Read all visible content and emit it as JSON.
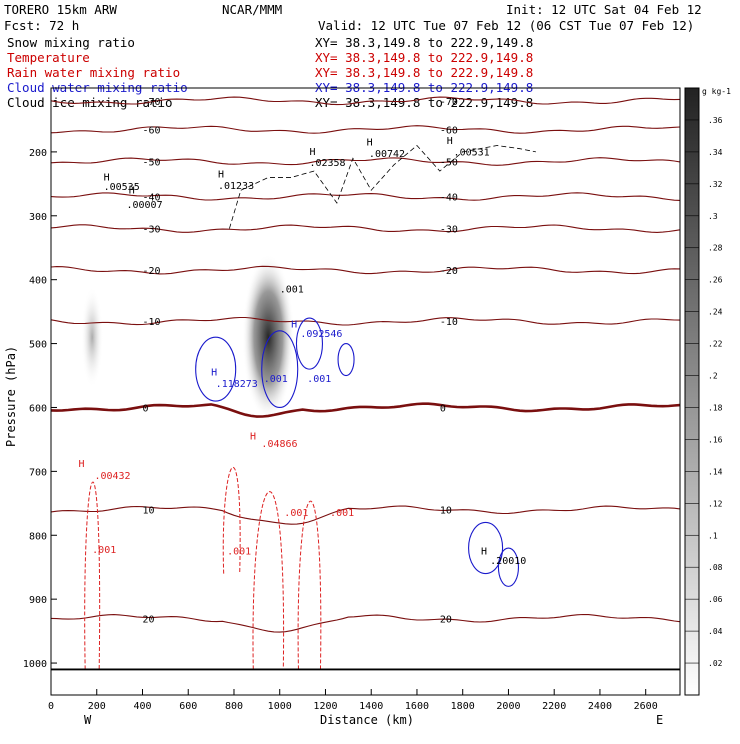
{
  "header": {
    "left_line1": "TORERO  15km ARW",
    "center": "NCAR/MMM",
    "init": "Init: 12 UTC Sat 04 Feb 12",
    "left_line2": "Fcst:   72 h",
    "valid": "Valid: 12 UTC Tue 07 Feb 12 (06 CST Tue 07 Feb 12)"
  },
  "fields": [
    {
      "name": "Snow mixing ratio",
      "xy": "XY=  38.3,149.8 to 222.9,149.8",
      "color": "#000000"
    },
    {
      "name": "Temperature",
      "xy": "XY=  38.3,149.8 to 222.9,149.8",
      "color": "#cc0000"
    },
    {
      "name": "Rain water mixing ratio",
      "xy": "XY=  38.3,149.8 to 222.9,149.8",
      "color": "#cc0000"
    },
    {
      "name": "Cloud water mixing ratio",
      "xy": "XY=  38.3,149.8 to 222.9,149.8",
      "color": "#1a1acc"
    },
    {
      "name": "Cloud ice mixing ratio",
      "xy": "XY=  38.3,149.8 to 222.9,149.8",
      "color": "#000000"
    }
  ],
  "colors": {
    "temperature": "#7a0f0f",
    "rain": "#dd2222",
    "cloud_water": "#1a1acc",
    "cloud_ice": "#000000",
    "ground": "#000000"
  },
  "chart_data": {
    "type": "cross-section contour",
    "xlabel": "Distance (km)",
    "ylabel": "Pressure (hPa)",
    "xlim": [
      0,
      2750
    ],
    "ylim": [
      1050,
      100
    ],
    "x_ticks": [
      0,
      200,
      400,
      600,
      800,
      1000,
      1200,
      1400,
      1600,
      1800,
      2000,
      2200,
      2400,
      2600
    ],
    "y_ticks": [
      200,
      300,
      400,
      500,
      600,
      700,
      800,
      900,
      1000
    ],
    "end_labels": {
      "left": "W",
      "right": "E"
    },
    "colorbar": {
      "unit_label": "g kg-1",
      "ticks": [
        ".02",
        ".04",
        ".06",
        ".08",
        ".1",
        ".12",
        ".14",
        ".16",
        ".18",
        ".2",
        ".22",
        ".24",
        ".26",
        ".28",
        ".3",
        ".32",
        ".34",
        ".36"
      ]
    },
    "temperature_contours": [
      {
        "label": "-70",
        "level": -70,
        "p": 120
      },
      {
        "label": "-60",
        "level": -60,
        "p": 165
      },
      {
        "label": "-50",
        "level": -50,
        "p": 215
      },
      {
        "label": "-40",
        "level": -40,
        "p": 270
      },
      {
        "label": "-30",
        "level": -30,
        "p": 320
      },
      {
        "label": "-20",
        "level": -20,
        "p": 385
      },
      {
        "label": "-10",
        "level": -10,
        "p": 465
      },
      {
        "label": "0",
        "level": 0,
        "p": 600
      },
      {
        "label": "10",
        "level": 10,
        "p": 760
      },
      {
        "label": "20",
        "level": 20,
        "p": 930
      }
    ],
    "annotations": [
      {
        "text": "H",
        "x": 230,
        "p": 245
      },
      {
        "text": ".00535",
        "x": 230,
        "p": 260
      },
      {
        "text": "H",
        "x": 340,
        "p": 265
      },
      {
        "text": ".00007",
        "x": 330,
        "p": 288
      },
      {
        "text": "H",
        "x": 730,
        "p": 240
      },
      {
        "text": ".01233",
        "x": 730,
        "p": 258
      },
      {
        "text": "H",
        "x": 1130,
        "p": 205
      },
      {
        "text": ".02358",
        "x": 1130,
        "p": 222
      },
      {
        "text": "H",
        "x": 1380,
        "p": 190
      },
      {
        "text": ".00742",
        "x": 1390,
        "p": 208
      },
      {
        "text": "H",
        "x": 1730,
        "p": 188
      },
      {
        "text": ".00531",
        "x": 1760,
        "p": 206
      },
      {
        "text": ".001",
        "x": 1000,
        "p": 420
      },
      {
        "text": "H",
        "x": 1050,
        "p": 475
      },
      {
        "text": ".092546",
        "x": 1090,
        "p": 490
      },
      {
        "text": "H",
        "x": 700,
        "p": 550
      },
      {
        "text": ".118273",
        "x": 720,
        "p": 568
      },
      {
        "text": ".001",
        "x": 930,
        "p": 560
      },
      {
        "text": ".001",
        "x": 1120,
        "p": 560
      },
      {
        "text": "H",
        "x": 870,
        "p": 650
      },
      {
        "text": ".04866",
        "x": 920,
        "p": 662
      },
      {
        "text": "H",
        "x": 120,
        "p": 693
      },
      {
        "text": ".00432",
        "x": 190,
        "p": 712
      },
      {
        "text": ".001",
        "x": 1020,
        "p": 770
      },
      {
        "text": ".001",
        "x": 1220,
        "p": 770
      },
      {
        "text": ".001",
        "x": 770,
        "p": 830
      },
      {
        "text": ".001",
        "x": 180,
        "p": 828
      },
      {
        "text": "H",
        "x": 1880,
        "p": 830
      },
      {
        "text": ".20010",
        "x": 1920,
        "p": 845
      }
    ],
    "cloud_ice_shading": [
      {
        "x": 950,
        "p_top": 360,
        "p_bottom": 620,
        "peak": 0.3
      },
      {
        "x": 180,
        "p_top": 410,
        "p_bottom": 570,
        "peak": 0.1
      }
    ]
  }
}
